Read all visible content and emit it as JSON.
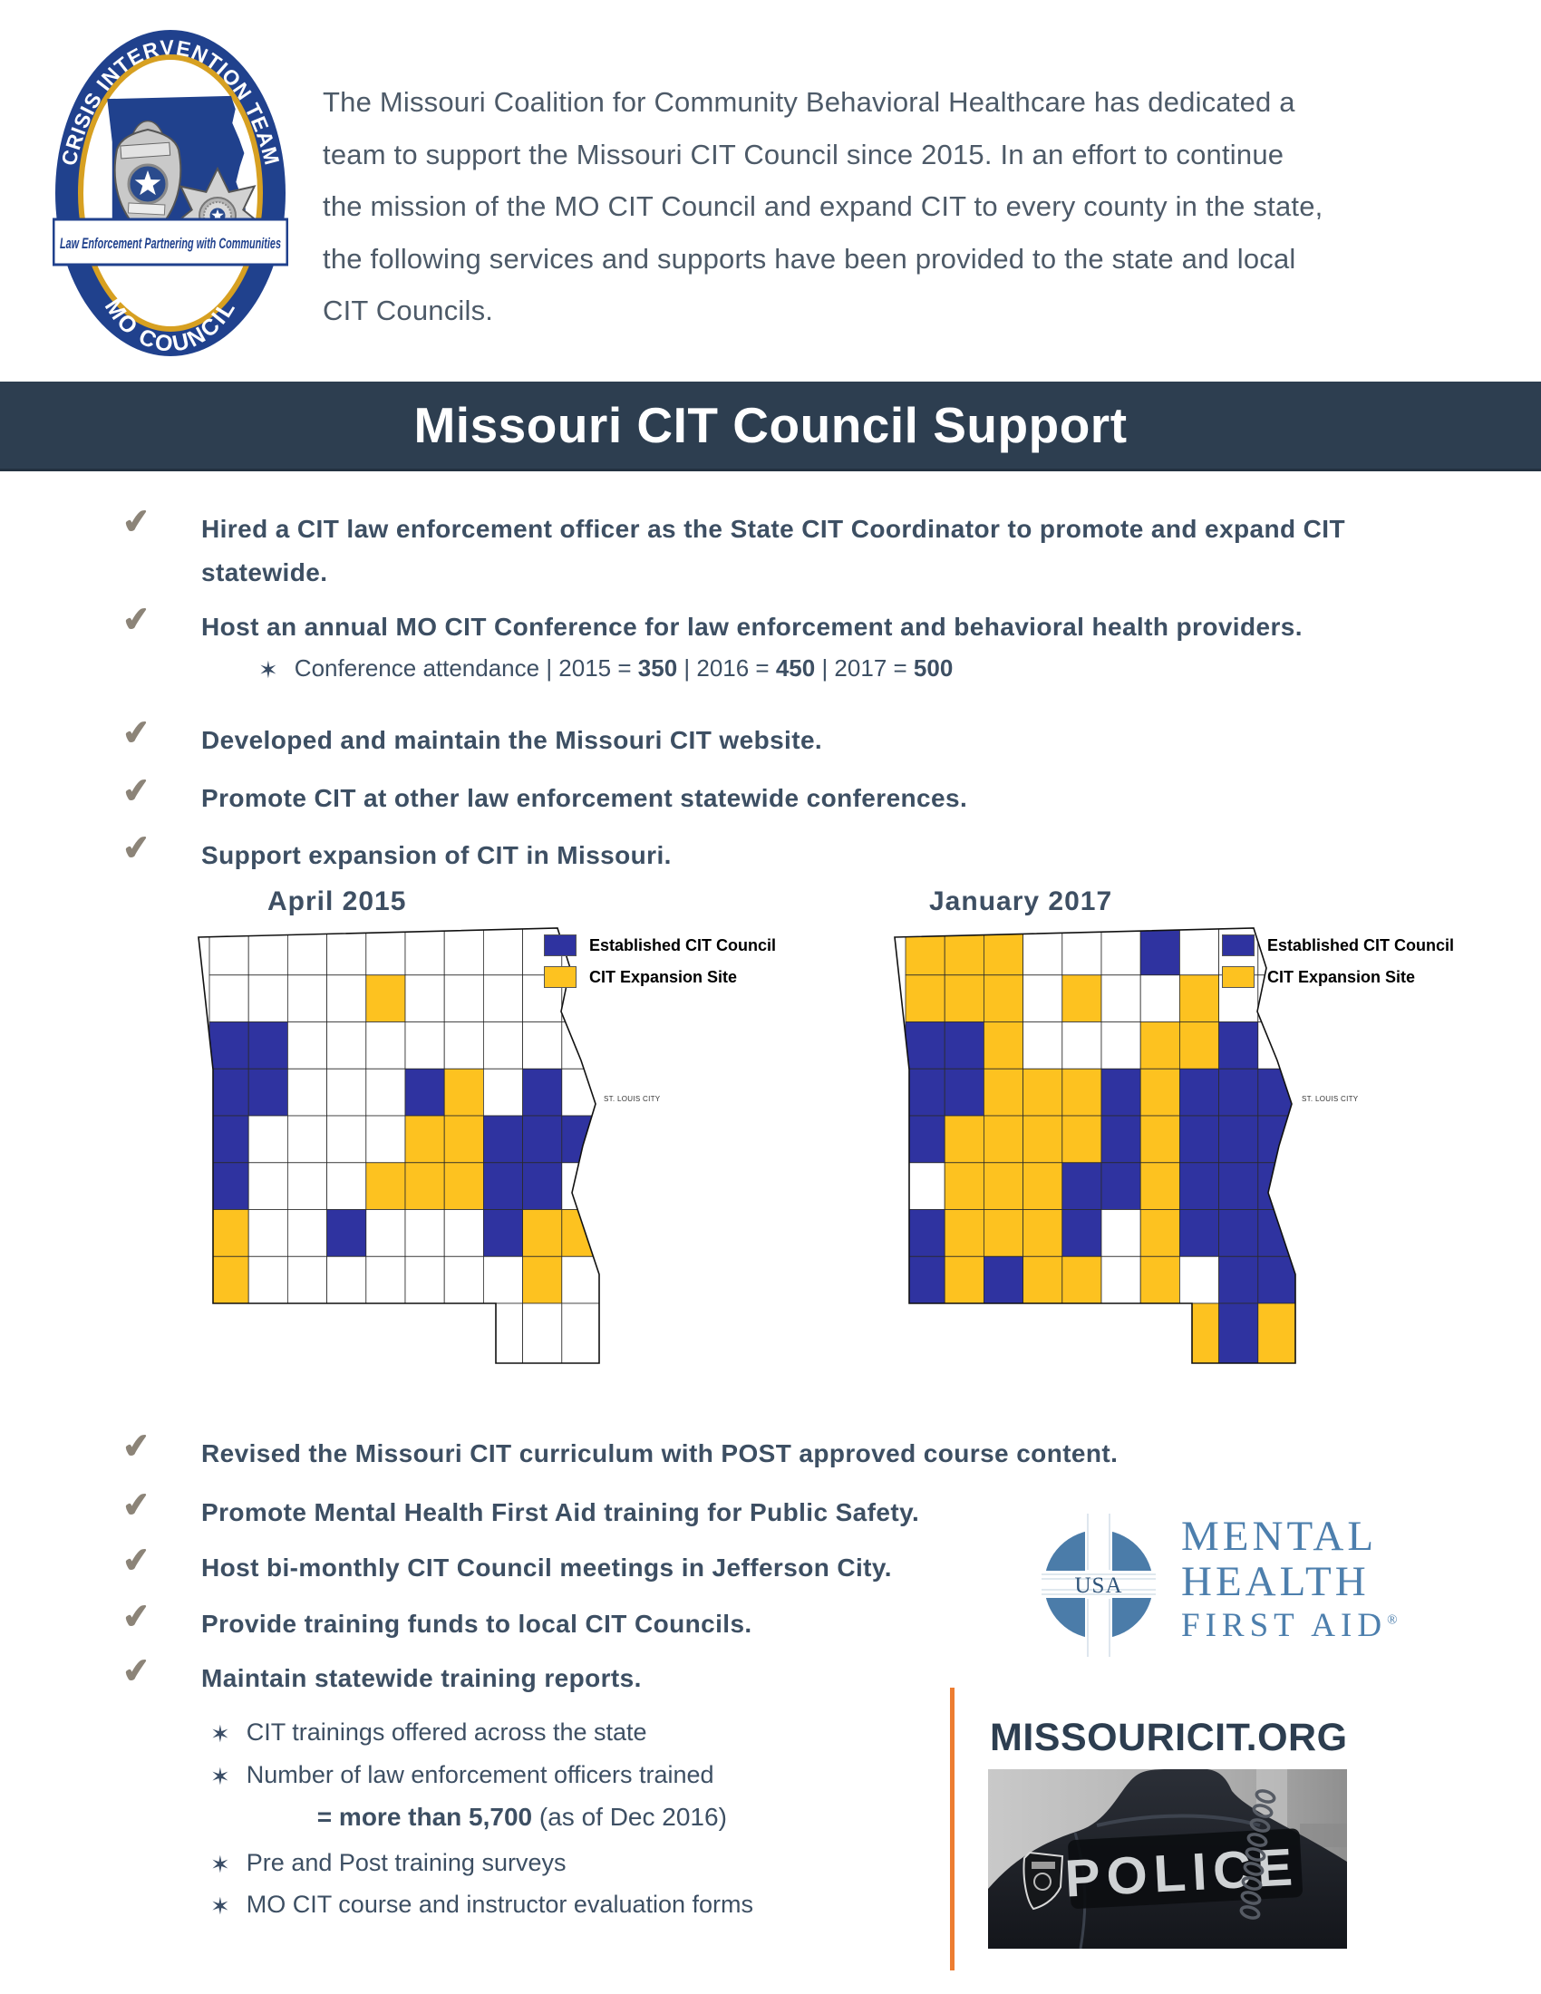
{
  "logo": {
    "arc_top": "CRISIS INTERVENTION TEAM",
    "arc_bottom": "MO COUNCIL",
    "ribbon": "Law Enforcement Partnering with Communities"
  },
  "intro": {
    "lines": [
      "The Missouri Coalition for Community Behavioral Healthcare has dedicated a",
      "team to support the Missouri CIT Council since 2015.  In an effort to continue",
      "the mission of the MO CIT Council and expand CIT to every county in the state,",
      "the following services and supports have been provided to the state and local",
      "CIT Councils."
    ]
  },
  "banner": {
    "title": "Missouri CIT Council Support",
    "bg": "#2d3e50"
  },
  "icons": {
    "check": "✔",
    "star": "✶"
  },
  "checklist_top": [
    "Hired a CIT law enforcement officer as the State CIT Coordinator to promote and expand CIT statewide.",
    "Host an annual MO CIT Conference for law enforcement and behavioral health providers.",
    "Developed and maintain the Missouri CIT website.",
    "Promote CIT at other law enforcement statewide conferences.",
    "Support expansion of CIT in Missouri."
  ],
  "conference": {
    "segments": [
      {
        "t": "Conference attendance  |  2015 = "
      },
      {
        "t": "350",
        "b": true
      },
      {
        "t": " | 2016 = "
      },
      {
        "t": "450",
        "b": true
      },
      {
        "t": " | 2017 = "
      },
      {
        "t": "500",
        "b": true
      }
    ]
  },
  "maps": {
    "colors": {
      "established": "#2f33a0",
      "expansion": "#fdc220"
    },
    "legend": [
      {
        "label": "Established CIT Council",
        "colorKey": "established"
      },
      {
        "label": "CIT Expansion Site",
        "colorKey": "expansion"
      }
    ],
    "st_louis_label": "ST. LOUIS CITY",
    "april": {
      "title": "April 2015",
      "grid": [
        "wwwwwwwwww",
        "wwwwywwwww",
        "bbwwwwwwww",
        "bbwwwbywbw",
        "bwwwwyybbb",
        "bwwwyyybbw",
        "ywwbwwwbyy",
        "ywwwwwwwyw",
        "wwwwwwwwww"
      ]
    },
    "january": {
      "title": "January 2017",
      "grid": [
        "yyywwwbwww",
        "yyywywwyww",
        "bbywwwyybw",
        "bbyyybybbb",
        "byyyybybbb",
        "wyyybbybbb",
        "byyybwybbb",
        "bybyywywbb",
        "wwwwwwwyby"
      ]
    }
  },
  "checklist_bottom": [
    "Revised the Missouri CIT curriculum with POST approved course content.",
    "Promote Mental Health First Aid training for Public Safety.",
    "Host bi-monthly CIT Council meetings in Jefferson City.",
    "Provide training funds to local CIT Councils.",
    "Maintain statewide training reports."
  ],
  "training_bullets": [
    {
      "star": true,
      "segments": [
        {
          "t": "CIT trainings offered across the state"
        }
      ]
    },
    {
      "star": true,
      "segments": [
        {
          "t": "Number of law enforcement officers trained"
        }
      ]
    },
    {
      "star": false,
      "segments": [
        {
          "t": "= more than 5,700 ",
          "b": true
        },
        {
          "t": "(as of Dec 2016)"
        }
      ]
    },
    {
      "star": true,
      "segments": [
        {
          "t": "Pre and Post training surveys"
        }
      ]
    },
    {
      "star": true,
      "segments": [
        {
          "t": "MO CIT course and instructor evaluation forms"
        }
      ]
    }
  ],
  "mhfa": {
    "usa": "USA",
    "line1": "MENTAL",
    "line2": "HEALTH",
    "line3": "FIRST AID",
    "reg": "®"
  },
  "footer": {
    "site": "MISSOURICIT.ORG",
    "police": "POLICE",
    "accent": "#ed7d31"
  }
}
